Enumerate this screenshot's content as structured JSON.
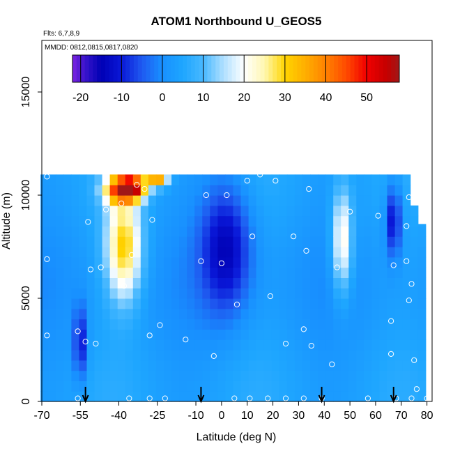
{
  "chart_data": {
    "type": "heatmap",
    "title": "ATOM1 Northbound U_GEOS5",
    "subtitle_flights": "Flts: 6,7,8,9",
    "subtitle_dates": "MMDD: 0812,0815,0817,0820",
    "xlabel": "Latitude (deg N)",
    "ylabel": "Altitude (m)",
    "xlim": [
      -70,
      82
    ],
    "ylim": [
      0,
      17500
    ],
    "x_ticks": [
      -70,
      -55,
      -40,
      -25,
      -10,
      0,
      10,
      20,
      30,
      40,
      50,
      60,
      70,
      80
    ],
    "y_ticks": [
      0,
      5000,
      10000,
      15000
    ],
    "colorbar": {
      "ticks": [
        -20,
        -10,
        0,
        10,
        20,
        30,
        40,
        50
      ],
      "range": [
        -22,
        58
      ],
      "stops": [
        {
          "v": -22,
          "c": "#7b22e0"
        },
        {
          "v": -19,
          "c": "#3a14cc"
        },
        {
          "v": -15,
          "c": "#0000b4"
        },
        {
          "v": -10,
          "c": "#0a18d8"
        },
        {
          "v": -5,
          "c": "#1f5af0"
        },
        {
          "v": 0,
          "c": "#1890ff"
        },
        {
          "v": 5,
          "c": "#1ea6ff"
        },
        {
          "v": 10,
          "c": "#48b8ff"
        },
        {
          "v": 15,
          "c": "#b0e0ff"
        },
        {
          "v": 20,
          "c": "#ffffff"
        },
        {
          "v": 25,
          "c": "#fff7b0"
        },
        {
          "v": 30,
          "c": "#ffd400"
        },
        {
          "v": 35,
          "c": "#ffae00"
        },
        {
          "v": 40,
          "c": "#ff8200"
        },
        {
          "v": 45,
          "c": "#ff4a00"
        },
        {
          "v": 50,
          "c": "#f00000"
        },
        {
          "v": 55,
          "c": "#c40000"
        },
        {
          "v": 58,
          "c": "#a01818"
        }
      ]
    },
    "grid_x": [
      -69,
      -66,
      -63,
      -60,
      -57,
      -54,
      -51,
      -48,
      -45,
      -42,
      -39,
      -36,
      -33,
      -30,
      -27,
      -24,
      -21,
      -18,
      -15,
      -12,
      -9,
      -6,
      -3,
      0,
      3,
      6,
      9,
      12,
      15,
      18,
      21,
      24,
      27,
      30,
      33,
      36,
      39,
      42,
      45,
      48,
      51,
      54,
      57,
      60,
      63,
      66,
      69,
      72,
      75,
      78
    ],
    "grid_y": [
      250,
      750,
      1250,
      1750,
      2250,
      2750,
      3250,
      3750,
      4250,
      4750,
      5250,
      5750,
      6250,
      6750,
      7250,
      7750,
      8250,
      8750,
      9250,
      9750,
      10250,
      10750
    ],
    "wind_features": [
      {
        "lat": -38,
        "alt": 7500,
        "lat_w": 7,
        "alt_w": 2600,
        "u": 30
      },
      {
        "lat": -40,
        "alt": 10300,
        "lat_w": 6,
        "alt_w": 700,
        "u": 37
      },
      {
        "lat": -34,
        "alt": 10400,
        "lat_w": 5,
        "alt_w": 600,
        "u": 42
      },
      {
        "lat": -25,
        "alt": 11000,
        "lat_w": 4,
        "alt_w": 500,
        "u": 45
      },
      {
        "lat": 2,
        "alt": 7500,
        "lat_w": 10,
        "alt_w": 3200,
        "u": -14
      },
      {
        "lat": 47,
        "alt": 7800,
        "lat_w": 4,
        "alt_w": 2600,
        "u": 24
      },
      {
        "lat": 67,
        "alt": 8800,
        "lat_w": 3,
        "alt_w": 1800,
        "u": -14
      },
      {
        "lat": -55,
        "alt": 2800,
        "lat_w": 2.5,
        "alt_w": 1800,
        "u": -12
      }
    ],
    "obs_points": [
      {
        "lat": -68,
        "alt": 10900
      },
      {
        "lat": -68,
        "alt": 6900
      },
      {
        "lat": -68,
        "alt": 3200
      },
      {
        "lat": -56,
        "alt": 3400
      },
      {
        "lat": -56,
        "alt": 150
      },
      {
        "lat": -53,
        "alt": 2900
      },
      {
        "lat": -52,
        "alt": 8700
      },
      {
        "lat": -51,
        "alt": 6400
      },
      {
        "lat": -49,
        "alt": 2800
      },
      {
        "lat": -47,
        "alt": 6500
      },
      {
        "lat": -45,
        "alt": 9300
      },
      {
        "lat": -39,
        "alt": 9600
      },
      {
        "lat": -38,
        "alt": 5600
      },
      {
        "lat": -36,
        "alt": 150
      },
      {
        "lat": -35,
        "alt": 7100
      },
      {
        "lat": -33,
        "alt": 10500
      },
      {
        "lat": -30,
        "alt": 10300
      },
      {
        "lat": -28,
        "alt": 150
      },
      {
        "lat": -28,
        "alt": 3200
      },
      {
        "lat": -27,
        "alt": 8800
      },
      {
        "lat": -24,
        "alt": 3700
      },
      {
        "lat": -22,
        "alt": 150
      },
      {
        "lat": -17,
        "alt": 11200
      },
      {
        "lat": -14,
        "alt": 3000
      },
      {
        "lat": -8,
        "alt": 6800
      },
      {
        "lat": -6,
        "alt": 10000
      },
      {
        "lat": -3,
        "alt": 2200
      },
      {
        "lat": 0,
        "alt": 6700
      },
      {
        "lat": 2,
        "alt": 10000
      },
      {
        "lat": 5,
        "alt": 150
      },
      {
        "lat": 6,
        "alt": 4700
      },
      {
        "lat": 10,
        "alt": 10700
      },
      {
        "lat": 11,
        "alt": 150
      },
      {
        "lat": 12,
        "alt": 8000
      },
      {
        "lat": 15,
        "alt": 11000
      },
      {
        "lat": 18,
        "alt": 150
      },
      {
        "lat": 19,
        "alt": 5100
      },
      {
        "lat": 21,
        "alt": 10700
      },
      {
        "lat": 25,
        "alt": 2800
      },
      {
        "lat": 25,
        "alt": 150
      },
      {
        "lat": 28,
        "alt": 8000
      },
      {
        "lat": 32,
        "alt": 150
      },
      {
        "lat": 32,
        "alt": 3500
      },
      {
        "lat": 33,
        "alt": 7300
      },
      {
        "lat": 34,
        "alt": 10300
      },
      {
        "lat": 35,
        "alt": 2700
      },
      {
        "lat": 39,
        "alt": 150
      },
      {
        "lat": 43,
        "alt": 1800
      },
      {
        "lat": 45,
        "alt": 6500
      },
      {
        "lat": 50,
        "alt": 9200
      },
      {
        "lat": 57,
        "alt": 150
      },
      {
        "lat": 61,
        "alt": 9000
      },
      {
        "lat": 66,
        "alt": 3900
      },
      {
        "lat": 66,
        "alt": 2300
      },
      {
        "lat": 67,
        "alt": 6600
      },
      {
        "lat": 68,
        "alt": 150
      },
      {
        "lat": 71,
        "alt": 11200
      },
      {
        "lat": 72,
        "alt": 6800
      },
      {
        "lat": 72,
        "alt": 8500
      },
      {
        "lat": 73,
        "alt": 9900
      },
      {
        "lat": 73,
        "alt": 4900
      },
      {
        "lat": 74,
        "alt": 5700
      },
      {
        "lat": 74,
        "alt": 150
      },
      {
        "lat": 75,
        "alt": 2000
      },
      {
        "lat": 76,
        "alt": 600
      },
      {
        "lat": 80,
        "alt": 150
      }
    ],
    "flight_markers_lat": [
      -53,
      -8,
      39,
      67
    ],
    "grid": false
  }
}
